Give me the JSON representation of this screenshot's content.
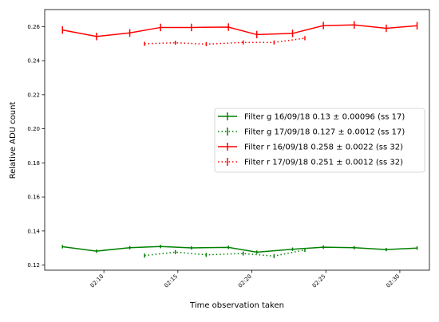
{
  "chart_data": {
    "type": "line",
    "xlabel": "Time observation taken",
    "ylabel": "Relative ADU count",
    "xlim": [
      "02:06",
      "02:32"
    ],
    "ylim": [
      0.117,
      0.27
    ],
    "x_ticks": [
      "02:10",
      "02:15",
      "02:20",
      "02:25",
      "02:30"
    ],
    "y_ticks": [
      "0.12",
      "0.14",
      "0.16",
      "0.18",
      "0.20",
      "0.22",
      "0.24",
      "0.26"
    ],
    "grid": false,
    "legend_position": "center-right",
    "series": [
      {
        "name": "Filter g 16/09/18 0.13 ± 0.00096 (ss 17)",
        "color": "#008000",
        "linestyle": "solid",
        "x": [
          "02:07:12",
          "02:09:30",
          "02:11:45",
          "02:13:50",
          "02:15:55",
          "02:18:25",
          "02:20:20",
          "02:22:45",
          "02:24:50",
          "02:26:55",
          "02:29:05",
          "02:31:10"
        ],
        "y": [
          0.1308,
          0.1282,
          0.1302,
          0.1309,
          0.1301,
          0.1304,
          0.1276,
          0.1293,
          0.1305,
          0.1302,
          0.1291,
          0.13
        ],
        "yerr": 0.001
      },
      {
        "name": "Filter g 17/09/18 0.127 ± 0.0012 (ss 17)",
        "color": "#008000",
        "linestyle": "dotted",
        "x": [
          "02:12:45",
          "02:14:50",
          "02:16:55",
          "02:19:25",
          "02:21:30",
          "02:23:35"
        ],
        "y": [
          0.1256,
          0.1276,
          0.126,
          0.1268,
          0.1253,
          0.1289
        ],
        "yerr": 0.0012
      },
      {
        "name": "Filter r 16/09/18 0.258 ± 0.0022 (ss 32)",
        "color": "#ff0000",
        "linestyle": "solid",
        "x": [
          "02:07:12",
          "02:09:30",
          "02:11:45",
          "02:13:50",
          "02:15:55",
          "02:18:25",
          "02:20:20",
          "02:22:45",
          "02:24:50",
          "02:26:55",
          "02:29:05",
          "02:31:10"
        ],
        "y": [
          0.258,
          0.2542,
          0.2563,
          0.2595,
          0.2595,
          0.2597,
          0.2553,
          0.256,
          0.2606,
          0.261,
          0.259,
          0.2605
        ],
        "yerr": 0.0022
      },
      {
        "name": "Filter r 17/09/18 0.251 ± 0.0012 (ss 32)",
        "color": "#ff0000",
        "linestyle": "dotted",
        "x": [
          "02:12:45",
          "02:14:50",
          "02:16:55",
          "02:19:25",
          "02:21:30",
          "02:23:35"
        ],
        "y": [
          0.2499,
          0.2505,
          0.2497,
          0.2507,
          0.2507,
          0.2532
        ],
        "yerr": 0.0012
      }
    ]
  }
}
